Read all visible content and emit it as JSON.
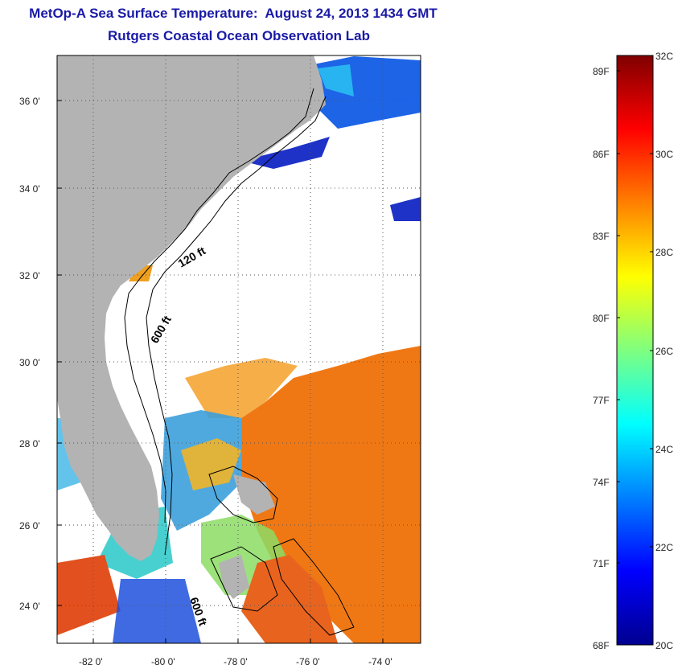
{
  "title": "MetOp-A Sea Surface Temperature:  August 24, 2013 1434 GMT",
  "subtitle": "Rutgers Coastal Ocean Observation Lab",
  "map": {
    "lon_range": [
      -83,
      -73
    ],
    "lat_range": [
      23,
      37
    ],
    "lon_ticks": [
      "-82 0'",
      "-80 0'",
      "-78 0'",
      "-76 0'",
      "-74 0'"
    ],
    "lat_ticks": [
      "36 0'",
      "34 0'",
      "32 0'",
      "30 0'",
      "28 0'",
      "26 0'",
      "24 0'"
    ],
    "contour_labels": [
      "120 ft",
      "600 ft",
      "600 ft"
    ],
    "land_color": "#b3b3b3",
    "grid": true
  },
  "colorbar": {
    "colormap": "jet",
    "celsius_range": [
      20,
      32
    ],
    "celsius_labels": [
      "32C",
      "30C",
      "28C",
      "26C",
      "24C",
      "22C",
      "20C"
    ],
    "fahrenheit_labels": [
      "89F",
      "86F",
      "83F",
      "80F",
      "77F",
      "74F",
      "71F",
      "68F"
    ]
  }
}
